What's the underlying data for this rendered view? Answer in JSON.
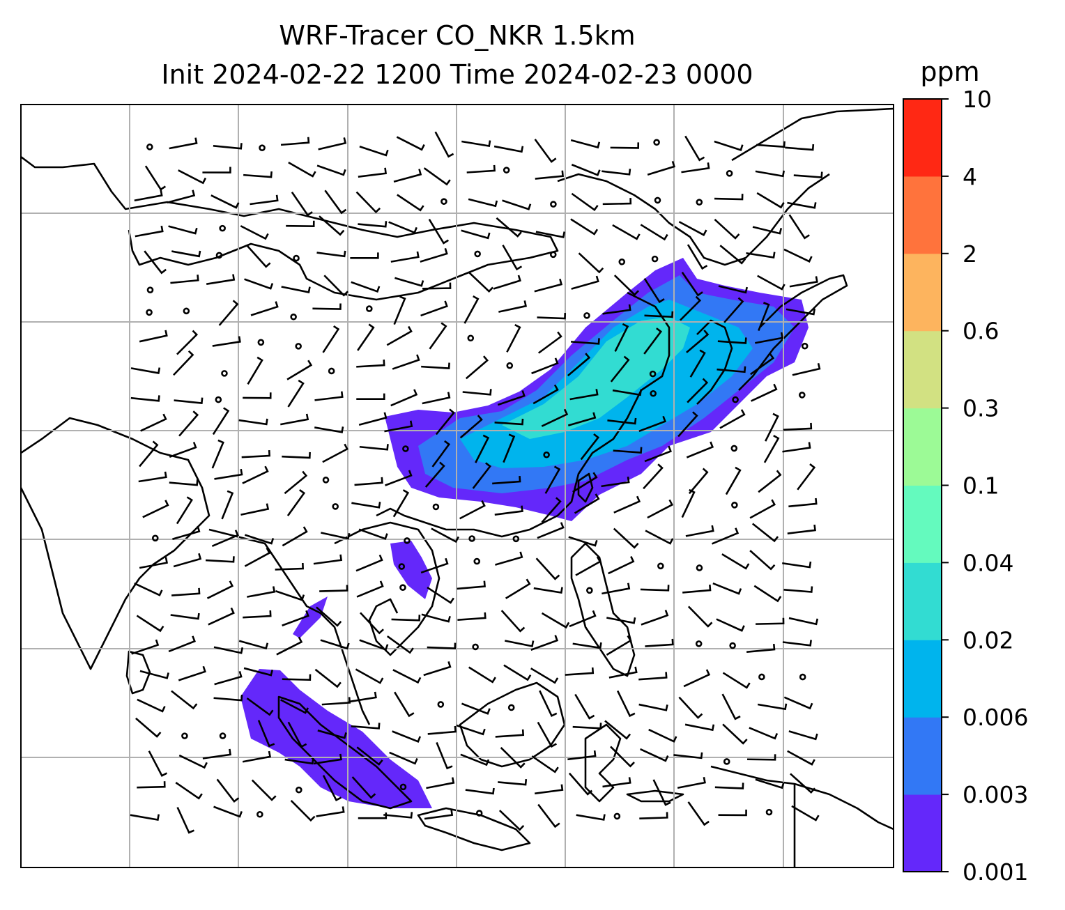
{
  "title": {
    "line1": "WRF-Tracer CO_NKR 1.5km",
    "line2": "Init 2024-02-22 1200 Time 2024-02-23 0000"
  },
  "colorbar": {
    "unit": "ppm",
    "levels": [
      "0.001",
      "0.003",
      "0.006",
      "0.02",
      "0.04",
      "0.1",
      "0.3",
      "0.6",
      "2",
      "4",
      "10"
    ],
    "colors": [
      "#6428fa",
      "#3278f5",
      "#00b4ed",
      "#32dcd2",
      "#64fabe",
      "#9cfa96",
      "#d2e182",
      "#fdb45e",
      "#ff733c",
      "#ff2814"
    ]
  },
  "map": {
    "type": "filled tracer concentration with wind barbs over coastlines and lat/lon grid",
    "region": "East and Southeast Asia",
    "gridlines": true,
    "ocean_color": "#ffffff",
    "coastline_color": "#000000"
  }
}
